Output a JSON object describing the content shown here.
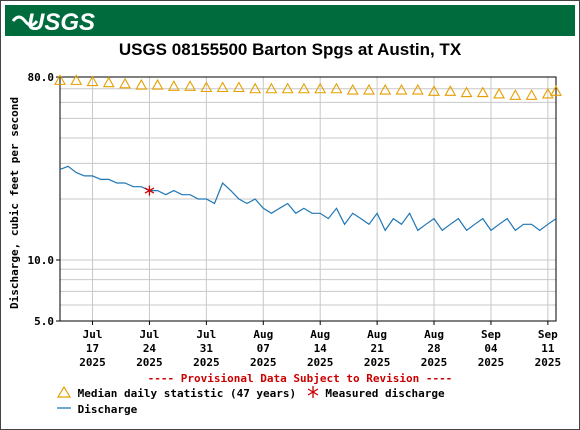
{
  "banner": {
    "logo_text": "USGS"
  },
  "chart_data": {
    "type": "line",
    "title": "USGS 08155500 Barton Spgs at Austin, TX",
    "xlabel": "",
    "ylabel": "Discharge, cubic feet per second",
    "y_scale": "log",
    "ylim": [
      5.0,
      80.0
    ],
    "y_ticks": [
      "80.0",
      "10.0",
      "5.0"
    ],
    "x_range": [
      "2025-07-13",
      "2025-09-12"
    ],
    "x_ticks": [
      {
        "date": "2025-07-17",
        "line1": "Jul",
        "line2": "17",
        "line3": "2025"
      },
      {
        "date": "2025-07-24",
        "line1": "Jul",
        "line2": "24",
        "line3": "2025"
      },
      {
        "date": "2025-07-31",
        "line1": "Jul",
        "line2": "31",
        "line3": "2025"
      },
      {
        "date": "2025-08-07",
        "line1": "Aug",
        "line2": "07",
        "line3": "2025"
      },
      {
        "date": "2025-08-14",
        "line1": "Aug",
        "line2": "14",
        "line3": "2025"
      },
      {
        "date": "2025-08-21",
        "line1": "Aug",
        "line2": "21",
        "line3": "2025"
      },
      {
        "date": "2025-08-28",
        "line1": "Aug",
        "line2": "28",
        "line3": "2025"
      },
      {
        "date": "2025-09-04",
        "line1": "Sep",
        "line2": "04",
        "line3": "2025"
      },
      {
        "date": "2025-09-11",
        "line1": "Sep",
        "line2": "11",
        "line3": "2025"
      }
    ],
    "grid": true,
    "series": [
      {
        "name": "Median daily statistic (47 years)",
        "style": "triangles",
        "color": "#e69f00",
        "x": [
          "2025-07-13",
          "2025-07-15",
          "2025-07-17",
          "2025-07-19",
          "2025-07-21",
          "2025-07-23",
          "2025-07-25",
          "2025-07-27",
          "2025-07-29",
          "2025-07-31",
          "2025-08-02",
          "2025-08-04",
          "2025-08-06",
          "2025-08-08",
          "2025-08-10",
          "2025-08-12",
          "2025-08-14",
          "2025-08-16",
          "2025-08-18",
          "2025-08-20",
          "2025-08-22",
          "2025-08-24",
          "2025-08-26",
          "2025-08-28",
          "2025-08-30",
          "2025-09-01",
          "2025-09-03",
          "2025-09-05",
          "2025-09-07",
          "2025-09-09",
          "2025-09-11",
          "2025-09-12"
        ],
        "y": [
          77,
          77,
          76,
          75,
          74,
          73,
          73,
          72,
          72,
          71,
          71,
          71,
          70,
          70,
          70,
          70,
          70,
          70,
          69,
          69,
          69,
          69,
          69,
          68,
          68,
          67,
          67,
          66,
          65,
          65,
          66,
          68
        ]
      },
      {
        "name": "Discharge",
        "style": "line",
        "color": "#1f77b4",
        "x": [
          "2025-07-13",
          "2025-07-14",
          "2025-07-15",
          "2025-07-16",
          "2025-07-17",
          "2025-07-18",
          "2025-07-19",
          "2025-07-20",
          "2025-07-21",
          "2025-07-22",
          "2025-07-23",
          "2025-07-24",
          "2025-07-25",
          "2025-07-26",
          "2025-07-27",
          "2025-07-28",
          "2025-07-29",
          "2025-07-30",
          "2025-07-31",
          "2025-08-01",
          "2025-08-02",
          "2025-08-03",
          "2025-08-04",
          "2025-08-05",
          "2025-08-06",
          "2025-08-07",
          "2025-08-08",
          "2025-08-09",
          "2025-08-10",
          "2025-08-11",
          "2025-08-12",
          "2025-08-13",
          "2025-08-14",
          "2025-08-15",
          "2025-08-16",
          "2025-08-17",
          "2025-08-18",
          "2025-08-19",
          "2025-08-20",
          "2025-08-21",
          "2025-08-22",
          "2025-08-23",
          "2025-08-24",
          "2025-08-25",
          "2025-08-26",
          "2025-08-27",
          "2025-08-28",
          "2025-08-29",
          "2025-08-30",
          "2025-08-31",
          "2025-09-01",
          "2025-09-02",
          "2025-09-03",
          "2025-09-04",
          "2025-09-05",
          "2025-09-06",
          "2025-09-07",
          "2025-09-08",
          "2025-09-09",
          "2025-09-10",
          "2025-09-11",
          "2025-09-12"
        ],
        "y": [
          28,
          29,
          27,
          26,
          26,
          25,
          25,
          24,
          24,
          23,
          23,
          22,
          22,
          21,
          22,
          21,
          21,
          20,
          20,
          19,
          24,
          22,
          20,
          19,
          20,
          18,
          17,
          18,
          19,
          17,
          18,
          17,
          17,
          16,
          18,
          15,
          17,
          16,
          15,
          17,
          14,
          16,
          15,
          17,
          14,
          15,
          16,
          14,
          15,
          16,
          14,
          15,
          16,
          14,
          15,
          16,
          14,
          15,
          15,
          14,
          15,
          16
        ]
      },
      {
        "name": "Measured discharge",
        "style": "asterisk",
        "color": "#cc0000",
        "x": [
          "2025-07-24"
        ],
        "y": [
          22
        ]
      }
    ],
    "legend": [
      {
        "symbol": "triangle",
        "label": "Median daily statistic (47 years)",
        "color": "#e69f00"
      },
      {
        "symbol": "asterisk",
        "label": "Measured discharge",
        "color": "#cc0000"
      },
      {
        "symbol": "line",
        "label": "Discharge",
        "color": "#1f77b4"
      }
    ],
    "note": "---- Provisional Data Subject to Revision ----"
  }
}
